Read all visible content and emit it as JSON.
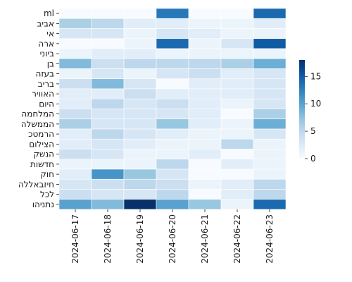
{
  "chart_data": {
    "type": "heatmap",
    "x_categories": [
      "2024-06-17",
      "2024-06-18",
      "2024-06-19",
      "2024-06-20",
      "2024-06-21",
      "2024-06-22",
      "2024-06-23"
    ],
    "y_categories": [
      "ml",
      "אביב",
      "אי",
      "ארה",
      "ביוני",
      "בן",
      "בעזה",
      "בריב",
      "האוויר",
      "היום",
      "המלחמה",
      "הממשלה",
      "הרמטכ",
      "הצילום",
      "הנשק",
      "חדשות",
      "חוק",
      "חיזבאללה",
      "לכל",
      "נתניהו"
    ],
    "values": [
      [
        0,
        0,
        0,
        13,
        0,
        0,
        14
      ],
      [
        6,
        5,
        2,
        2,
        1,
        1,
        2
      ],
      [
        3,
        3,
        1,
        3,
        2,
        1,
        1
      ],
      [
        0,
        0,
        1,
        14,
        1,
        3,
        15
      ],
      [
        1,
        2,
        2,
        1,
        1,
        1,
        1
      ],
      [
        8,
        4,
        5,
        5,
        5,
        6,
        9
      ],
      [
        1,
        3,
        1,
        3,
        4,
        2,
        3
      ],
      [
        4,
        8,
        3,
        0,
        2,
        2,
        3
      ],
      [
        2,
        2,
        4,
        2,
        2,
        2,
        3
      ],
      [
        2,
        5,
        3,
        4,
        2,
        1,
        3
      ],
      [
        4,
        3,
        3,
        3,
        2,
        0,
        6
      ],
      [
        6,
        3,
        3,
        7,
        2,
        1,
        9
      ],
      [
        2,
        5,
        3,
        2,
        1,
        1,
        3
      ],
      [
        2,
        3,
        2,
        1,
        1,
        5,
        1
      ],
      [
        4,
        3,
        1,
        1,
        2,
        0,
        1
      ],
      [
        1,
        1,
        1,
        5,
        0,
        2,
        1
      ],
      [
        2,
        11,
        7,
        3,
        0,
        0,
        1
      ],
      [
        3,
        4,
        5,
        4,
        1,
        2,
        5
      ],
      [
        4,
        3,
        3,
        5,
        0,
        2,
        5
      ],
      [
        10,
        8,
        18,
        10,
        7,
        1,
        14
      ]
    ],
    "colorbar": {
      "min": 0,
      "max": 18,
      "ticks": [
        0,
        5,
        10,
        15
      ]
    },
    "colormap": "Blues",
    "grid_line_color": "#ffffff",
    "title": "",
    "xlabel": "",
    "ylabel": ""
  }
}
